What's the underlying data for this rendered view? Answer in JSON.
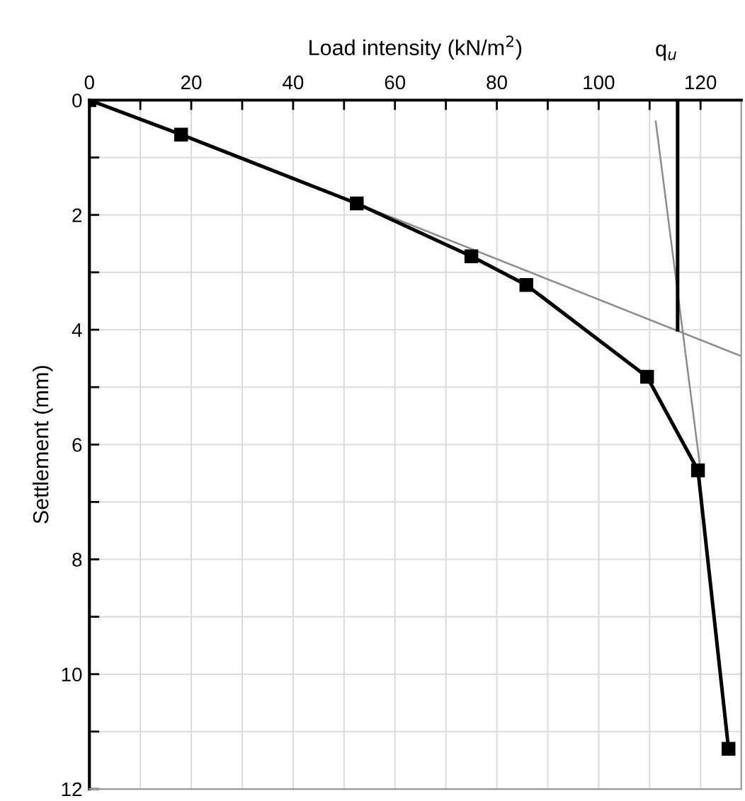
{
  "chart_data": {
    "type": "line",
    "xlabel": "Load intensity (kN/m$^{2}$)",
    "ylabel": "Settlement (mm)",
    "xlim": [
      0,
      128
    ],
    "ylim": [
      12,
      0
    ],
    "xticks": [
      0,
      {
        "value": 10,
        "label": null
      },
      20,
      {
        "value": 30,
        "label": null
      },
      40,
      {
        "value": 50,
        "label": null
      },
      60,
      {
        "value": 70,
        "label": null
      },
      80,
      {
        "value": 90,
        "label": null
      },
      100,
      {
        "value": 110,
        "label": null
      },
      120
    ],
    "yticks": [
      0,
      {
        "value": 1,
        "label": null
      },
      2,
      {
        "value": 3,
        "label": null
      },
      4,
      {
        "value": 5,
        "label": null
      },
      6,
      {
        "value": 7,
        "label": null
      },
      8,
      {
        "value": 9,
        "label": null
      },
      10,
      {
        "value": 11,
        "label": null
      },
      12
    ],
    "grid": true,
    "series": [
      {
        "color": "#000000",
        "marker": "square",
        "x": [
          0,
          18,
          52.5,
          75,
          85.8,
          109.5,
          119.5,
          125.5
        ],
        "values": [
          0,
          0.6,
          1.8,
          2.72,
          3.22,
          4.82,
          6.45,
          11.3
        ]
      },
      {
        "color": "#8c8c8c",
        "marker": "none",
        "x": [
          50,
          128
        ],
        "values": [
          1.71,
          4.46
        ]
      },
      {
        "color": "#8c8c8c",
        "marker": "none",
        "x": [
          111.2,
          120
        ],
        "values": [
          0.37,
          6.45
        ]
      },
      {
        "color": "#000000",
        "marker": "none",
        "x": [
          115.5,
          115.5
        ],
        "values": [
          0,
          4.0
        ]
      }
    ],
    "annotations": [
      {
        "text": "q$_{u}$",
        "x": 115.5,
        "y": 0
      }
    ]
  }
}
